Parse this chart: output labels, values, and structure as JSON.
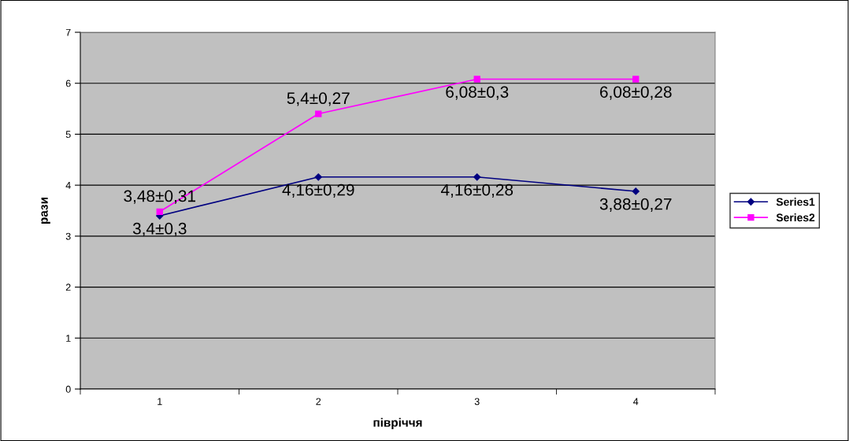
{
  "chart_data": {
    "type": "line",
    "xlabel": "півріччя",
    "ylabel": "рази",
    "categories": [
      "1",
      "2",
      "3",
      "4"
    ],
    "series": [
      {
        "name": "Series1",
        "color": "#000080",
        "marker": "diamond",
        "values": [
          3.4,
          4.16,
          4.16,
          3.88
        ],
        "value_labels": [
          "3,4±0,3",
          "4,16±0,29",
          "4,16±0,28",
          "3,88±0,27"
        ]
      },
      {
        "name": "Series2",
        "color": "#ff00ff",
        "marker": "square",
        "values": [
          3.48,
          5.4,
          6.08,
          6.08
        ],
        "value_labels": [
          "3,48±0,31",
          "5,4±0,27",
          "6,08±0,3",
          "6,08±0,28"
        ]
      }
    ],
    "ylim": [
      0,
      7
    ],
    "yticks": [
      0,
      1,
      2,
      3,
      4,
      5,
      6,
      7
    ],
    "grid": "y",
    "legend": "right",
    "line_style": "solid"
  }
}
